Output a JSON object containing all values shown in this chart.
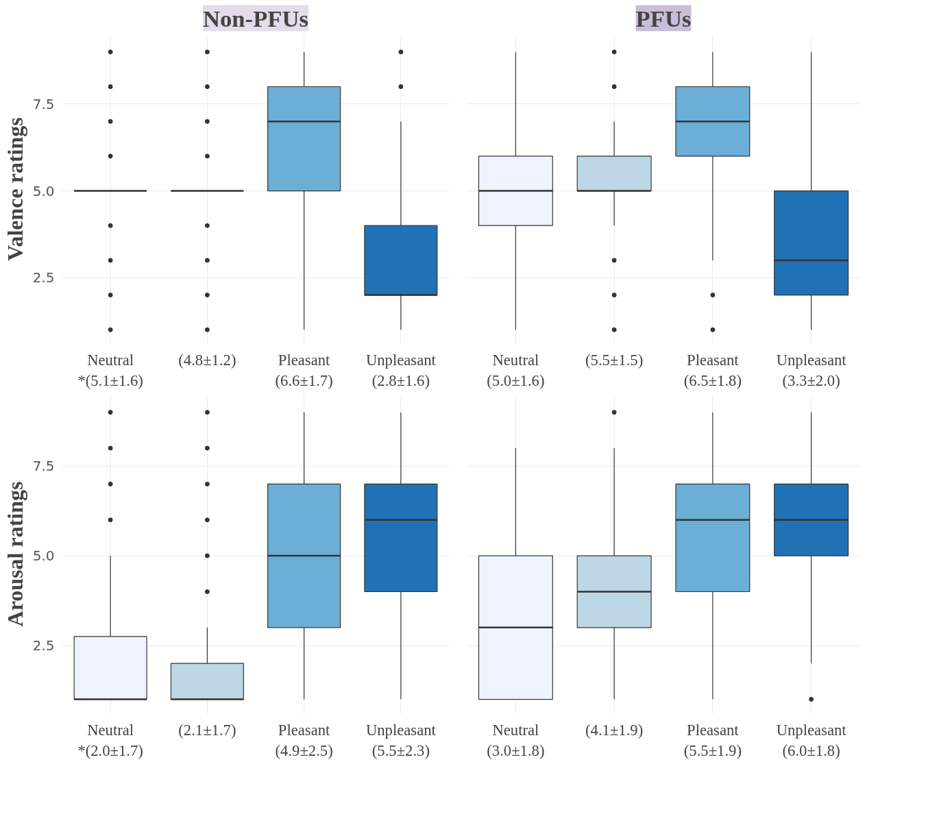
{
  "chart_data": [
    {
      "type": "box",
      "title": "Non-PFUs",
      "ylabel": "Valence ratings",
      "categories": [
        "Neutral\n*(5.1±1.6)",
        "(4.8±1.2)",
        "Pleasant\n(6.6±1.7)",
        "Unpleasant\n(2.8±1.6)"
      ],
      "colors": [
        "#333333",
        "#333333",
        "#6baed6",
        "#2171b5"
      ],
      "ylim": [
        0.6,
        9.5
      ],
      "yticks": [
        2.5,
        {
          "value": 5,
          "label": "5.0"
        },
        7.5
      ],
      "grid": true,
      "boxes": [
        {
          "low": 5,
          "q1": 5,
          "median": 5,
          "q3": 5,
          "high": 5,
          "outliers": [
            1,
            2,
            3,
            4,
            6,
            7,
            8,
            9
          ]
        },
        {
          "low": 5,
          "q1": 5,
          "median": 5,
          "q3": 5,
          "high": 5,
          "outliers": [
            1,
            2,
            3,
            4,
            6,
            7,
            8,
            9
          ]
        },
        {
          "low": 1,
          "q1": 5,
          "median": 7,
          "q3": 8,
          "high": 9
        },
        {
          "low": 1,
          "q1": 2,
          "median": 2,
          "q3": 4,
          "high": 7,
          "outliers": [
            8,
            9
          ]
        }
      ]
    },
    {
      "type": "box",
      "title": "PFUs",
      "categories": [
        "Neutral\n(5.0±1.6)",
        "(5.5±1.5)",
        "Pleasant\n(6.5±1.8)",
        "Unpleasant\n(3.3±2.0)"
      ],
      "colors": [
        "#eef3fd",
        "#bdd7e7",
        "#6baed6",
        "#2171b5"
      ],
      "ylim": [
        0.6,
        9.5
      ],
      "yticks": [
        2.5,
        5.0,
        7.5
      ],
      "grid": true,
      "tick_labels": "x",
      "boxes": [
        {
          "low": 1,
          "q1": 4,
          "median": 5,
          "q3": 6,
          "high": 9
        },
        {
          "low": 4,
          "q1": 5,
          "median": 5,
          "q3": 6,
          "high": 7,
          "outliers": [
            1,
            2,
            3,
            8,
            9
          ]
        },
        {
          "low": 3,
          "q1": 6,
          "median": 7,
          "q3": 8,
          "high": 9,
          "outliers": [
            1,
            2
          ]
        },
        {
          "low": 1,
          "q1": 2,
          "median": 3,
          "q3": 5,
          "high": 9
        }
      ]
    },
    {
      "type": "box",
      "ylabel": "Arousal ratings",
      "categories": [
        "Neutral\n*(2.0±1.7)",
        "(2.1±1.7)",
        "Pleasant\n(4.9±2.5)",
        "Unpleasant\n(5.5±2.3)"
      ],
      "colors": [
        "#eef3fd",
        "#bdd7e7",
        "#6baed6",
        "#2171b5"
      ],
      "ylim": [
        0.6,
        9.5
      ],
      "yticks": [
        2.5,
        {
          "value": 5,
          "label": "5.0"
        },
        7.5
      ],
      "grid": true,
      "boxes": [
        {
          "low": 1,
          "q1": 1,
          "median": 1,
          "q3": 2.75,
          "high": 5,
          "outliers": [
            6,
            7,
            8,
            9
          ]
        },
        {
          "low": 1,
          "q1": 1,
          "median": 1,
          "q3": 2,
          "high": 3,
          "outliers": [
            4,
            5,
            6,
            7,
            8,
            9
          ]
        },
        {
          "low": 1,
          "q1": 3,
          "median": 5,
          "q3": 7,
          "high": 9
        },
        {
          "low": 1,
          "q1": 4,
          "median": 6,
          "q3": 7,
          "high": 9
        }
      ]
    },
    {
      "type": "box",
      "categories": [
        "Neutral\n(3.0±1.8)",
        "(4.1±1.9)",
        "Pleasant\n(5.5±1.9)",
        "Unpleasant\n(6.0±1.8)"
      ],
      "colors": [
        "#eef3fd",
        "#bdd7e7",
        "#6baed6",
        "#2171b5"
      ],
      "ylim": [
        0.6,
        9.5
      ],
      "yticks": [
        2.5,
        5.0,
        7.5
      ],
      "grid": true,
      "tick_labels": "x",
      "boxes": [
        {
          "low": 1,
          "q1": 1,
          "median": 3,
          "q3": 5,
          "high": 8
        },
        {
          "low": 1,
          "q1": 3,
          "median": 4,
          "q3": 5,
          "high": 8,
          "outliers": [
            9
          ]
        },
        {
          "low": 1,
          "q1": 4,
          "median": 6,
          "q3": 7,
          "high": 9
        },
        {
          "low": 2,
          "q1": 5,
          "median": 6,
          "q3": 7,
          "high": 9,
          "outliers": [
            1
          ]
        }
      ]
    }
  ]
}
